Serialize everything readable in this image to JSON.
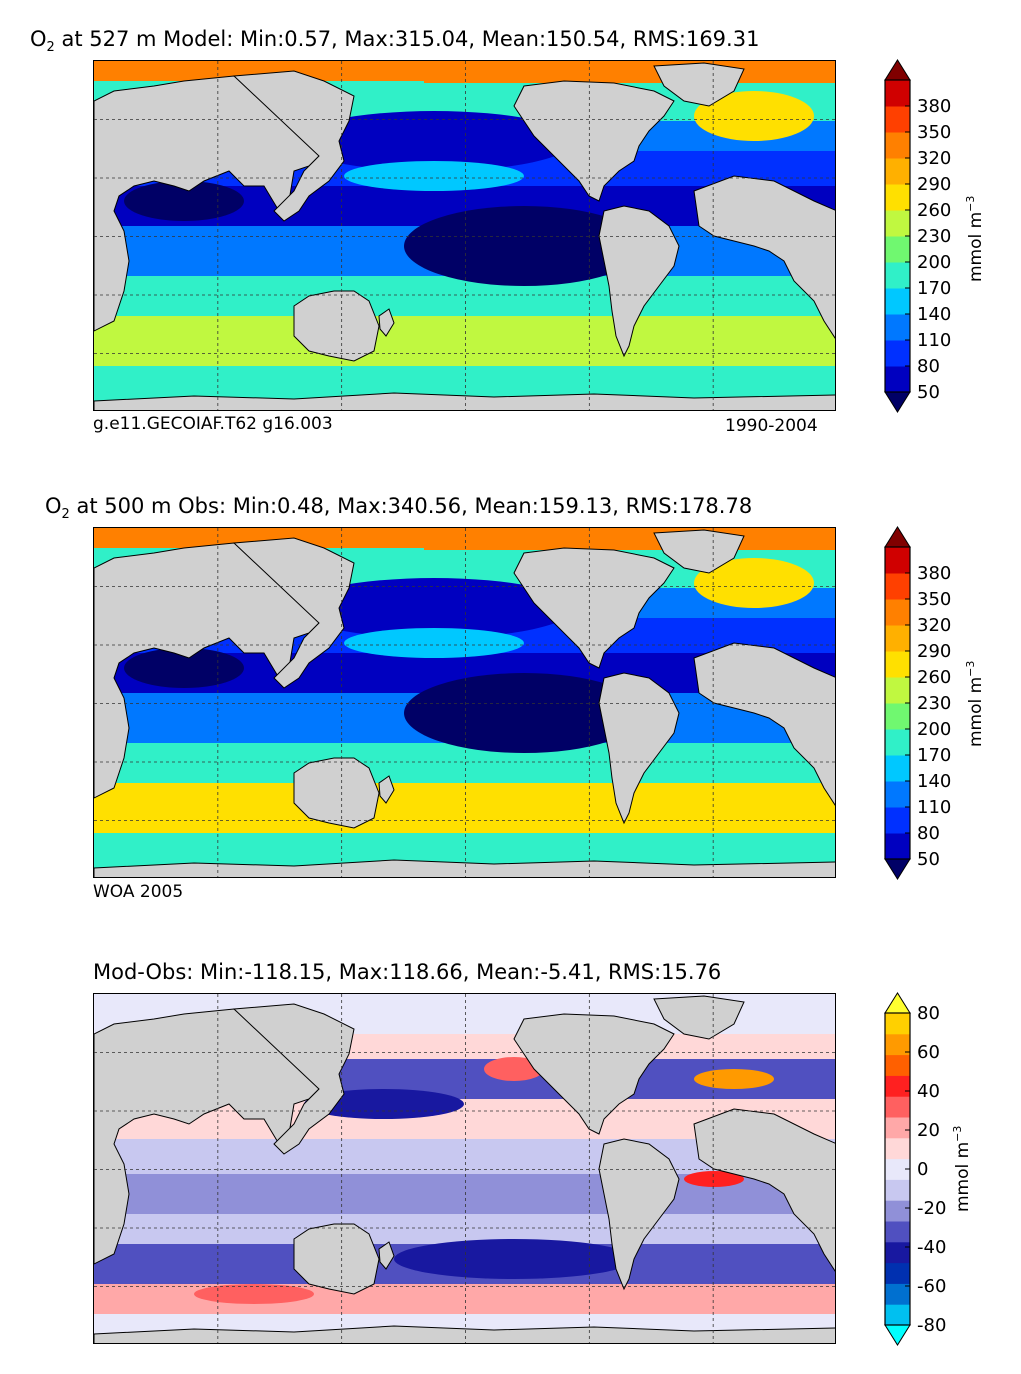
{
  "panels": [
    {
      "title_prefix": "O",
      "title_sub": "2",
      "title_rest": " at 527 m Model: Min:0.57, Max:315.04, Mean:150.54, RMS:169.31",
      "left_note": "g.e11.GECOIAF.T62 g16.003",
      "right_note": "1990-2004",
      "colorbar": {
        "ticks": [
          "380",
          "350",
          "320",
          "290",
          "260",
          "230",
          "200",
          "170",
          "140",
          "110",
          "80",
          "50"
        ],
        "label": "mmol m",
        "label_sup": "−3",
        "colors": [
          "#000066",
          "#0000c0",
          "#0030ff",
          "#0078ff",
          "#00c8ff",
          "#30f0c8",
          "#70f870",
          "#c0f840",
          "#ffe000",
          "#ffb000",
          "#ff8000",
          "#ff4000",
          "#d00000",
          "#800000"
        ]
      },
      "chart_data": {
        "type": "heatmap",
        "variable": "O2",
        "depth": "527 m",
        "source": "Model",
        "stats": {
          "min": 0.57,
          "max": 315.04,
          "mean": 150.54,
          "rms": 169.31
        },
        "colorbar_ticks": [
          50,
          80,
          110,
          140,
          170,
          200,
          230,
          260,
          290,
          320,
          350,
          380
        ]
      }
    },
    {
      "title_prefix": "O",
      "title_sub": "2",
      "title_rest": " at 500 m Obs: Min:0.48, Max:340.56, Mean:159.13, RMS:178.78",
      "left_note": "WOA 2005",
      "right_note": "",
      "colorbar": {
        "ticks": [
          "380",
          "350",
          "320",
          "290",
          "260",
          "230",
          "200",
          "170",
          "140",
          "110",
          "80",
          "50"
        ],
        "label": "mmol m",
        "label_sup": "−3",
        "colors": [
          "#000066",
          "#0000c0",
          "#0030ff",
          "#0078ff",
          "#00c8ff",
          "#30f0c8",
          "#70f870",
          "#c0f840",
          "#ffe000",
          "#ffb000",
          "#ff8000",
          "#ff4000",
          "#d00000",
          "#800000"
        ]
      },
      "chart_data": {
        "type": "heatmap",
        "variable": "O2",
        "depth": "500 m",
        "source": "Obs",
        "stats": {
          "min": 0.48,
          "max": 340.56,
          "mean": 159.13,
          "rms": 178.78
        },
        "colorbar_ticks": [
          50,
          80,
          110,
          140,
          170,
          200,
          230,
          260,
          290,
          320,
          350,
          380
        ]
      }
    },
    {
      "title_prefix": "",
      "title_sub": "",
      "title_rest": "Mod-Obs: Min:-118.15, Max:118.66, Mean:-5.41, RMS:15.76",
      "left_note": "",
      "right_note": "",
      "colorbar": {
        "ticks": [
          "80",
          "60",
          "40",
          "20",
          "0",
          "-20",
          "-40",
          "-60",
          "-80"
        ],
        "label": "mmol m",
        "label_sup": "−3",
        "colors": [
          "#00ffff",
          "#00c0f0",
          "#0070d0",
          "#0030b0",
          "#1818a0",
          "#5050c0",
          "#9090d8",
          "#c8c8f0",
          "#e8e8fa",
          "#ffd8d8",
          "#ffa8a8",
          "#ff6060",
          "#ff2020",
          "#ff6000",
          "#ff9a00",
          "#ffd000",
          "#ffff30"
        ]
      },
      "chart_data": {
        "type": "heatmap",
        "variable": "O2 difference",
        "source": "Mod-Obs",
        "stats": {
          "min": -118.15,
          "max": 118.66,
          "mean": -5.41,
          "rms": 15.76
        },
        "colorbar_ticks": [
          -80,
          -60,
          -40,
          -20,
          0,
          20,
          40,
          60,
          80
        ]
      }
    }
  ]
}
